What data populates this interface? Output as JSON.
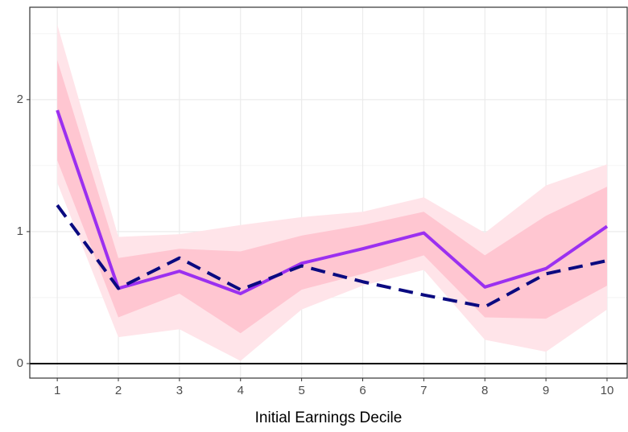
{
  "chart_data": {
    "type": "line",
    "x_label": "Initial Earnings Decile",
    "x": [
      1,
      2,
      3,
      4,
      5,
      6,
      7,
      8,
      9,
      10
    ],
    "xlim": [
      0.55,
      10.33
    ],
    "xticks": [
      1,
      2,
      3,
      4,
      5,
      6,
      7,
      8,
      9,
      10
    ],
    "ylim": [
      -0.11,
      2.7
    ],
    "yticks": [
      0,
      1,
      2
    ],
    "minor_yticks": [
      0.5,
      1.5,
      2.5
    ],
    "grid": true,
    "reference_line": 0,
    "bands": [
      {
        "color": "#ffe4e9",
        "upper": [
          2.57,
          0.96,
          0.98,
          1.05,
          1.11,
          1.15,
          1.26,
          0.99,
          1.35,
          1.51
        ],
        "lower": [
          1.37,
          0.2,
          0.26,
          0.02,
          0.41,
          0.59,
          0.71,
          0.18,
          0.09,
          0.41
        ]
      },
      {
        "color": "#ffc6d1",
        "upper": [
          2.3,
          0.8,
          0.87,
          0.85,
          0.97,
          1.05,
          1.15,
          0.82,
          1.12,
          1.34
        ],
        "lower": [
          1.54,
          0.35,
          0.53,
          0.23,
          0.56,
          0.68,
          0.82,
          0.35,
          0.34,
          0.59
        ]
      }
    ],
    "series": [
      {
        "color": "#9b30f0",
        "dash": "solid",
        "values": [
          1.92,
          0.57,
          0.7,
          0.53,
          0.76,
          0.87,
          0.99,
          0.58,
          0.72,
          1.04
        ]
      },
      {
        "color": "#0a0a80",
        "dash": "dashed",
        "values": [
          1.2,
          0.57,
          0.8,
          0.56,
          0.74,
          0.62,
          0.52,
          0.43,
          0.68,
          0.78
        ]
      }
    ]
  }
}
